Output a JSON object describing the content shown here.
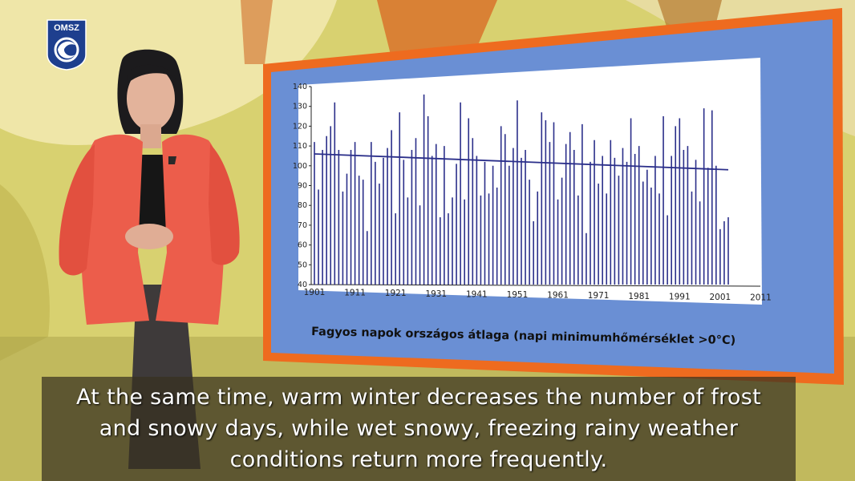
{
  "logo": {
    "text": "OMSZ"
  },
  "chart_data": {
    "type": "bar",
    "title": "Fagyos napok országos átlaga (napi minimumhőmérséklet >0°C)",
    "xlabel": "",
    "ylabel": "",
    "ylim": [
      40,
      140
    ],
    "yticks": [
      40,
      50,
      60,
      70,
      80,
      90,
      100,
      110,
      120,
      130,
      140
    ],
    "xticks": [
      "1901",
      "1911",
      "1921",
      "1931",
      "1941",
      "1951",
      "1961",
      "1971",
      "1981",
      "1991",
      "2001",
      "2011"
    ],
    "x_start": 1901,
    "values": [
      112,
      88,
      108,
      115,
      120,
      132,
      108,
      87,
      96,
      108,
      112,
      95,
      93,
      67,
      112,
      102,
      91,
      104,
      109,
      118,
      76,
      127,
      103,
      84,
      108,
      114,
      80,
      136,
      125,
      105,
      111,
      74,
      110,
      76,
      84,
      101,
      132,
      83,
      124,
      114,
      105,
      85,
      102,
      86,
      100,
      89,
      120,
      116,
      100,
      109,
      133,
      104,
      108,
      93,
      72,
      87,
      127,
      123,
      112,
      122,
      83,
      94,
      111,
      117,
      108,
      85,
      121,
      66,
      102,
      113,
      91,
      105,
      86,
      113,
      104,
      95,
      109,
      102,
      124,
      106,
      110,
      92,
      98,
      89,
      105,
      86,
      125,
      75,
      105,
      120,
      124,
      108,
      110,
      87,
      103,
      82,
      129,
      99,
      128,
      100,
      68,
      72,
      74
    ],
    "trend": {
      "from": 106,
      "to": 98
    },
    "grid": false,
    "bar_color": "#2b2f8a"
  },
  "subtitles": {
    "line1": "At the same time, warm winter decreases the number of frost",
    "line2": "and snowy days, while wet snowy, freezing rainy weather",
    "line3": "conditions return more frequently."
  }
}
